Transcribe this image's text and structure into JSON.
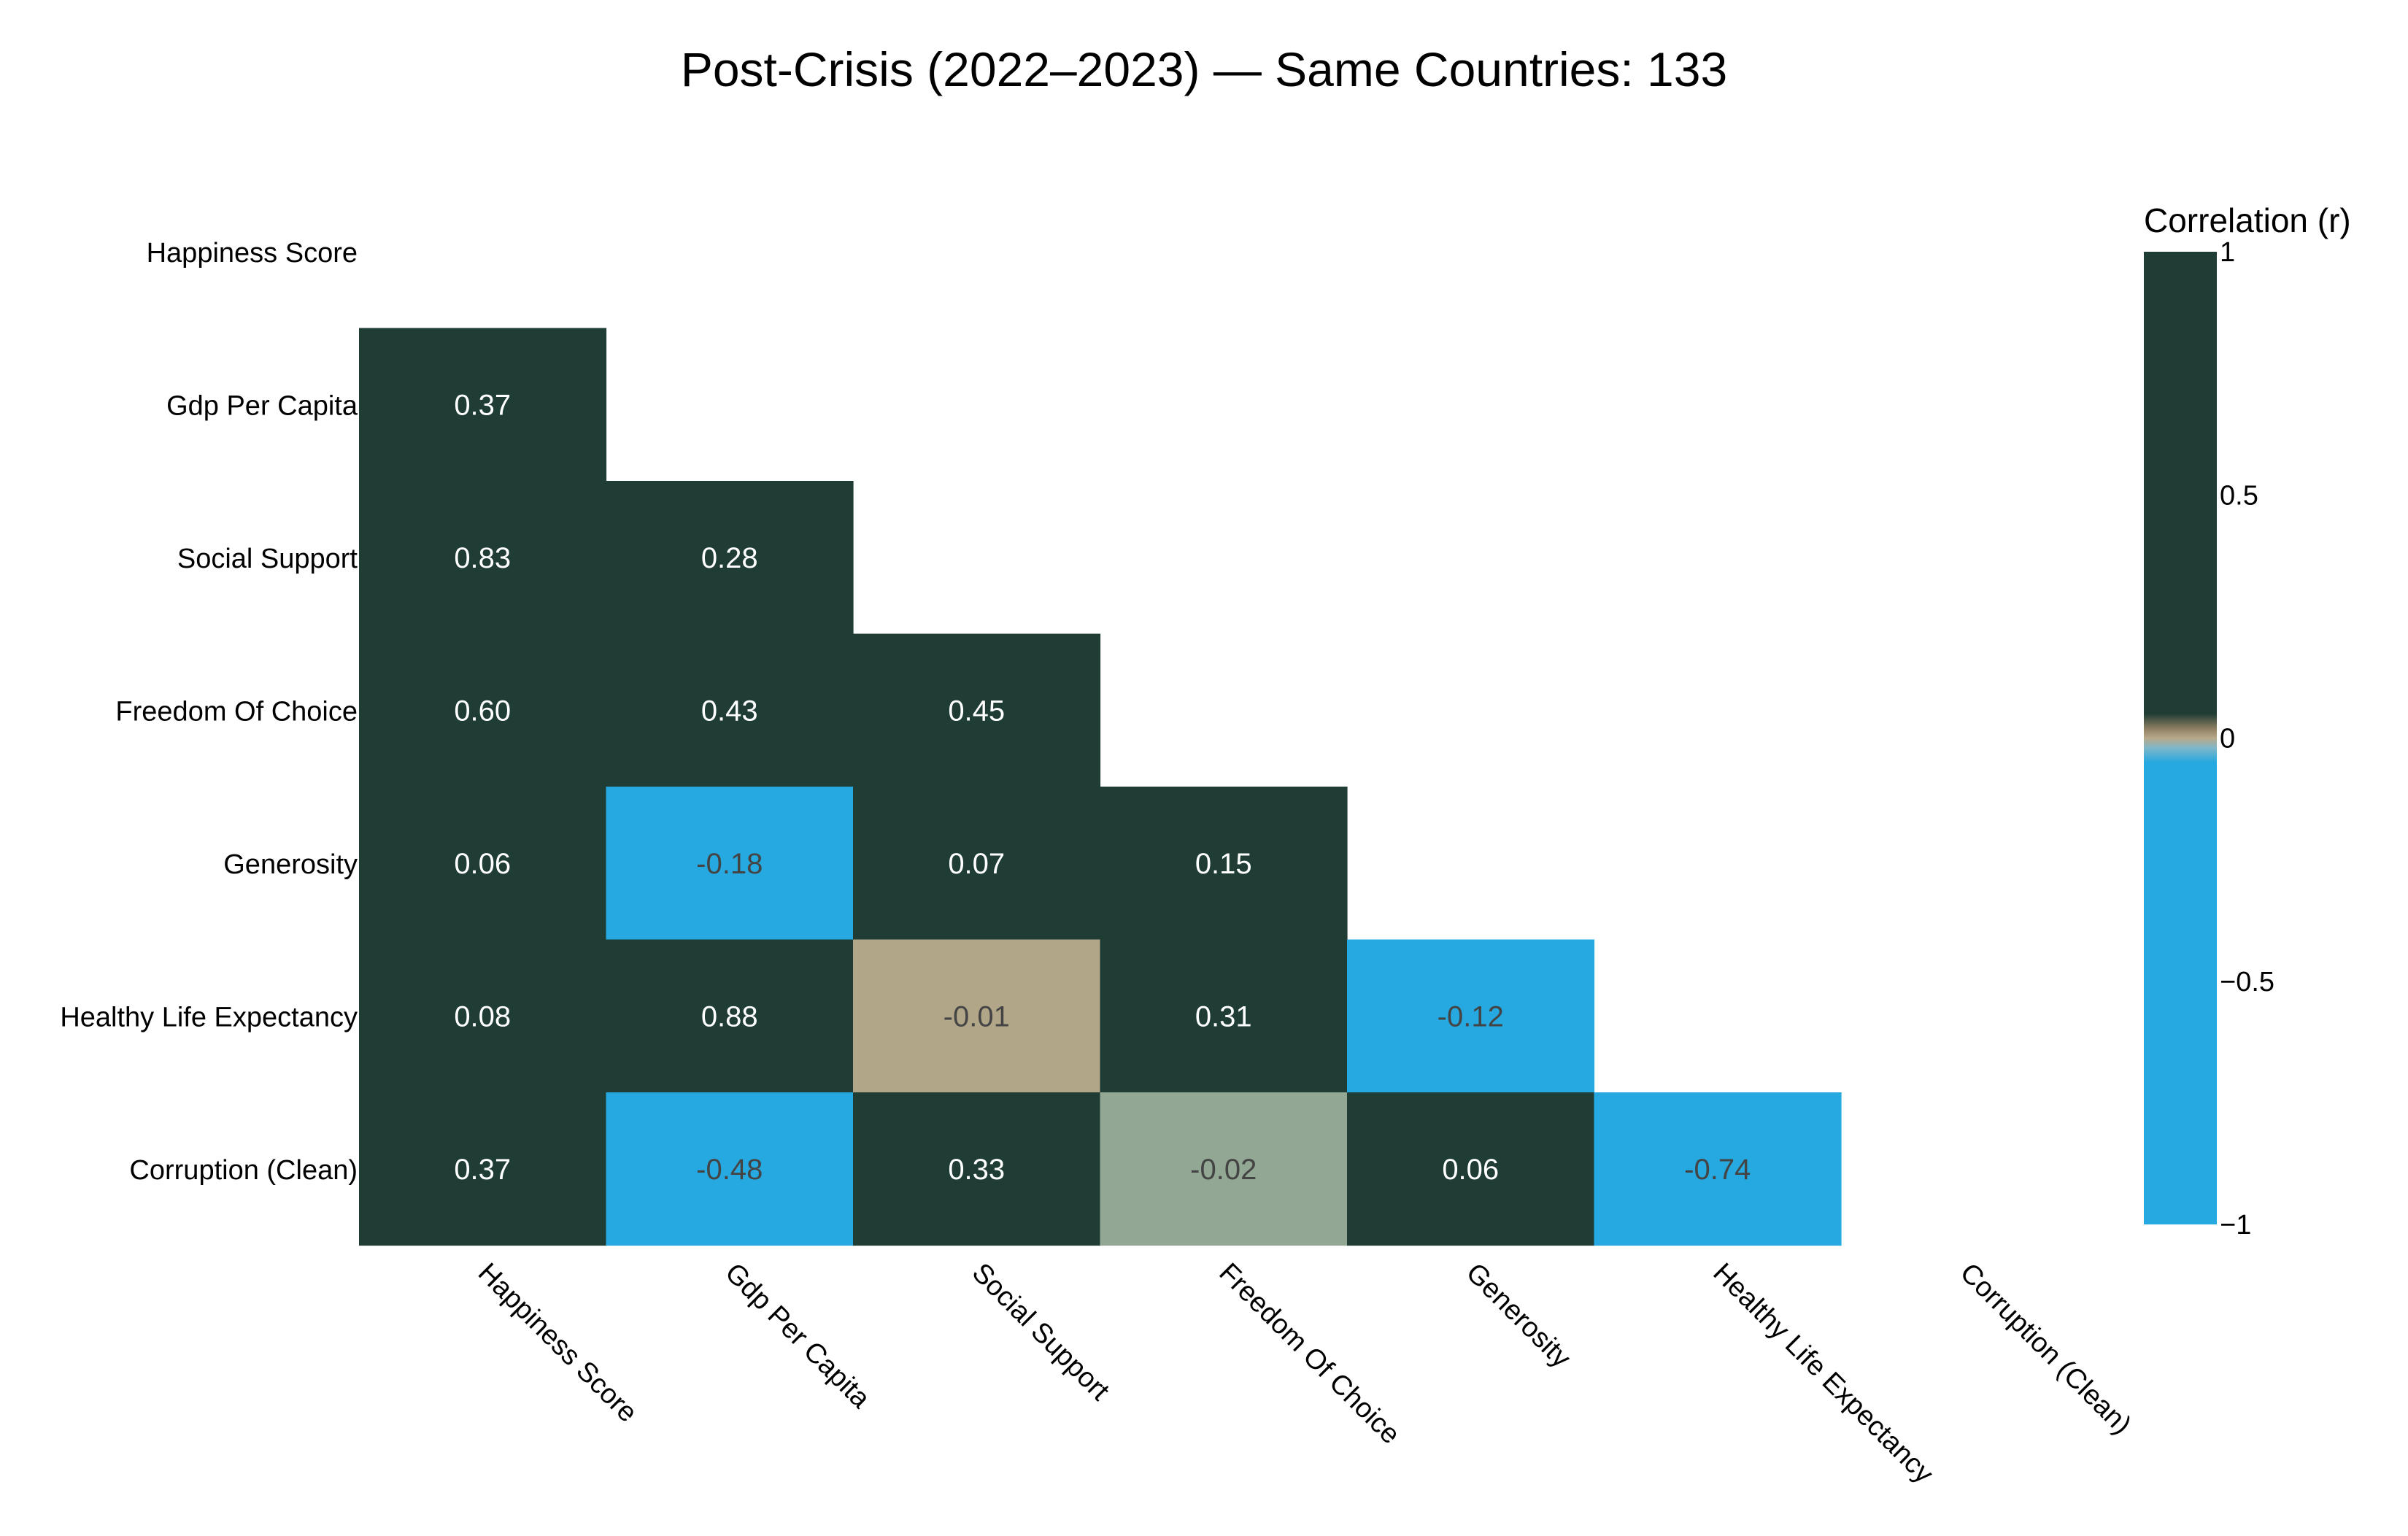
{
  "chart_data": {
    "type": "heatmap",
    "title": "Post-Crisis (2022–2023) — Same Countries: 133",
    "variables": [
      "Happiness Score",
      "Gdp Per Capita",
      "Social Support",
      "Freedom Of Choice",
      "Generosity",
      "Healthy Life Expectancy",
      "Corruption (Clean)"
    ],
    "matrix_lower": [
      [],
      [
        0.37
      ],
      [
        0.83,
        0.28
      ],
      [
        0.6,
        0.43,
        0.45
      ],
      [
        0.06,
        -0.18,
        0.07,
        0.15
      ],
      [
        0.08,
        0.88,
        -0.01,
        0.31,
        -0.12
      ],
      [
        0.37,
        -0.48,
        0.33,
        -0.02,
        0.06,
        -0.74
      ]
    ],
    "value_labels": [
      [],
      [
        "0.37"
      ],
      [
        "0.83",
        "0.28"
      ],
      [
        "0.60",
        "0.43",
        "0.45"
      ],
      [
        "0.06",
        "-0.18",
        "0.07",
        "0.15"
      ],
      [
        "0.08",
        "0.88",
        "-0.01",
        "0.31",
        "-0.12"
      ],
      [
        "0.37",
        "-0.48",
        "0.33",
        "-0.02",
        "0.06",
        "-0.74"
      ]
    ],
    "colorbar": {
      "title": "Correlation (r)",
      "range": [
        -1,
        1
      ],
      "ticks": [
        1,
        0.5,
        0,
        -0.5,
        -1
      ],
      "tick_labels": [
        "1",
        "0.5",
        "0",
        "−0.5",
        "−1"
      ]
    },
    "colors": {
      "negative": "#26a9e0",
      "neutral": "#b9a98a",
      "positive": "#1f3d35",
      "text_dark_bg": "#ffffff",
      "text_light_bg": "#444444"
    },
    "grid": false,
    "legend": "right"
  }
}
